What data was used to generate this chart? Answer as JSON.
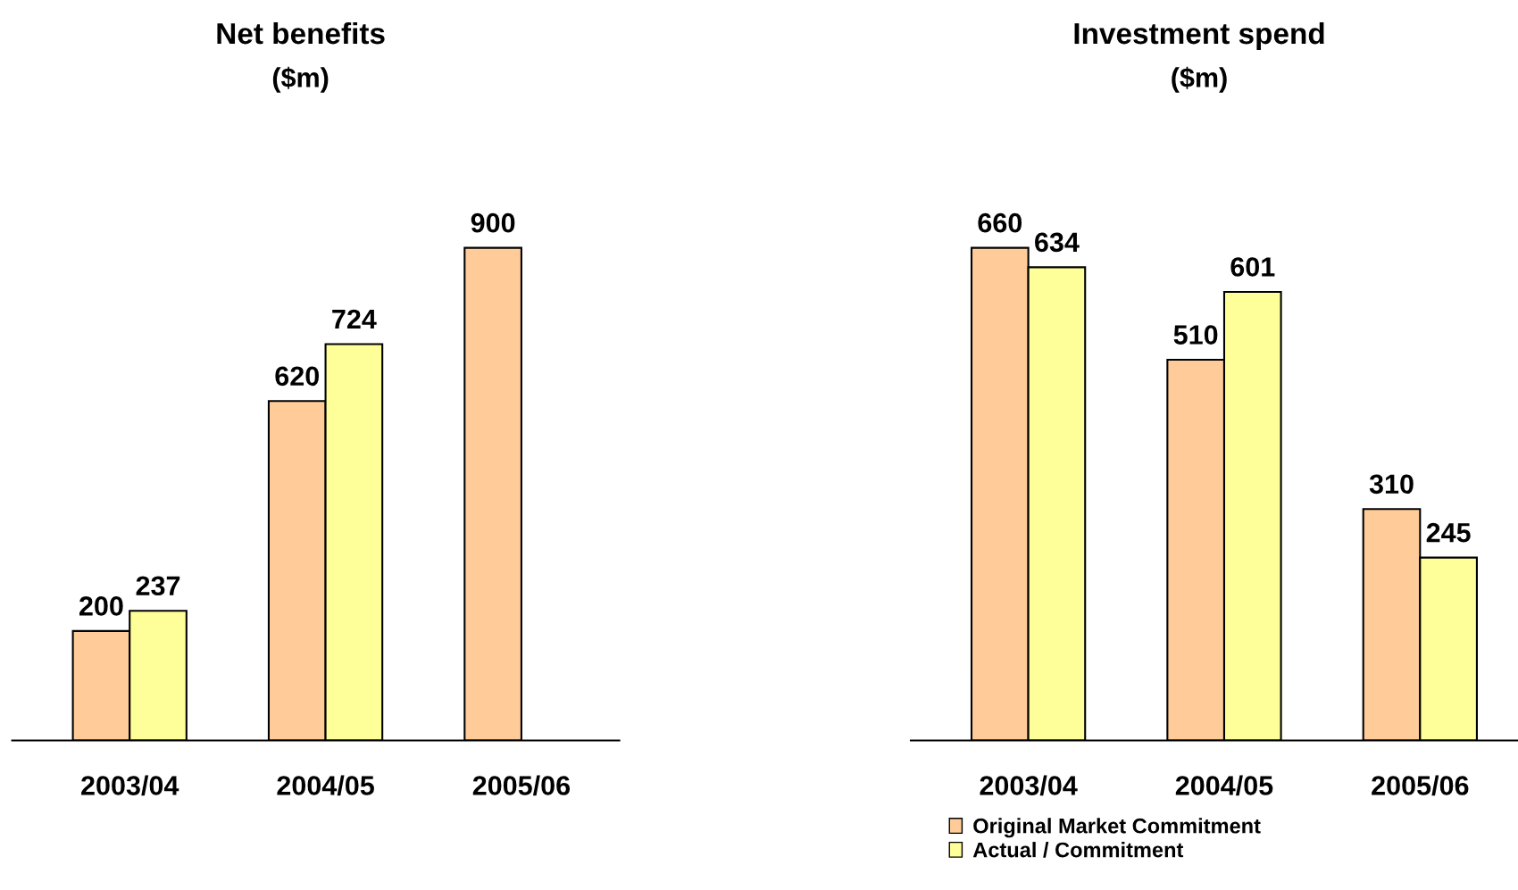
{
  "chart_data": [
    {
      "type": "bar",
      "title": "Net benefits",
      "subtitle": "($m)",
      "categories": [
        "2003/04",
        "2004/05",
        "2005/06"
      ],
      "series": [
        {
          "color": "#ffcc99",
          "values": [
            200,
            620,
            900
          ]
        },
        {
          "color": "#ffff99",
          "values": [
            237,
            724,
            null
          ]
        }
      ],
      "data_labels": true,
      "grid": false,
      "legend": false
    },
    {
      "type": "bar",
      "title": "Investment spend",
      "subtitle": "($m)",
      "categories": [
        "2003/04",
        "2004/05",
        "2005/06"
      ],
      "series": [
        {
          "name": "Original Market Commitment",
          "color": "#ffcc99",
          "values": [
            660,
            510,
            310
          ]
        },
        {
          "name": "Actual / Commitment",
          "color": "#ffff99",
          "values": [
            634,
            601,
            245
          ]
        }
      ],
      "data_labels": true,
      "grid": false,
      "legend": "bottom"
    }
  ]
}
